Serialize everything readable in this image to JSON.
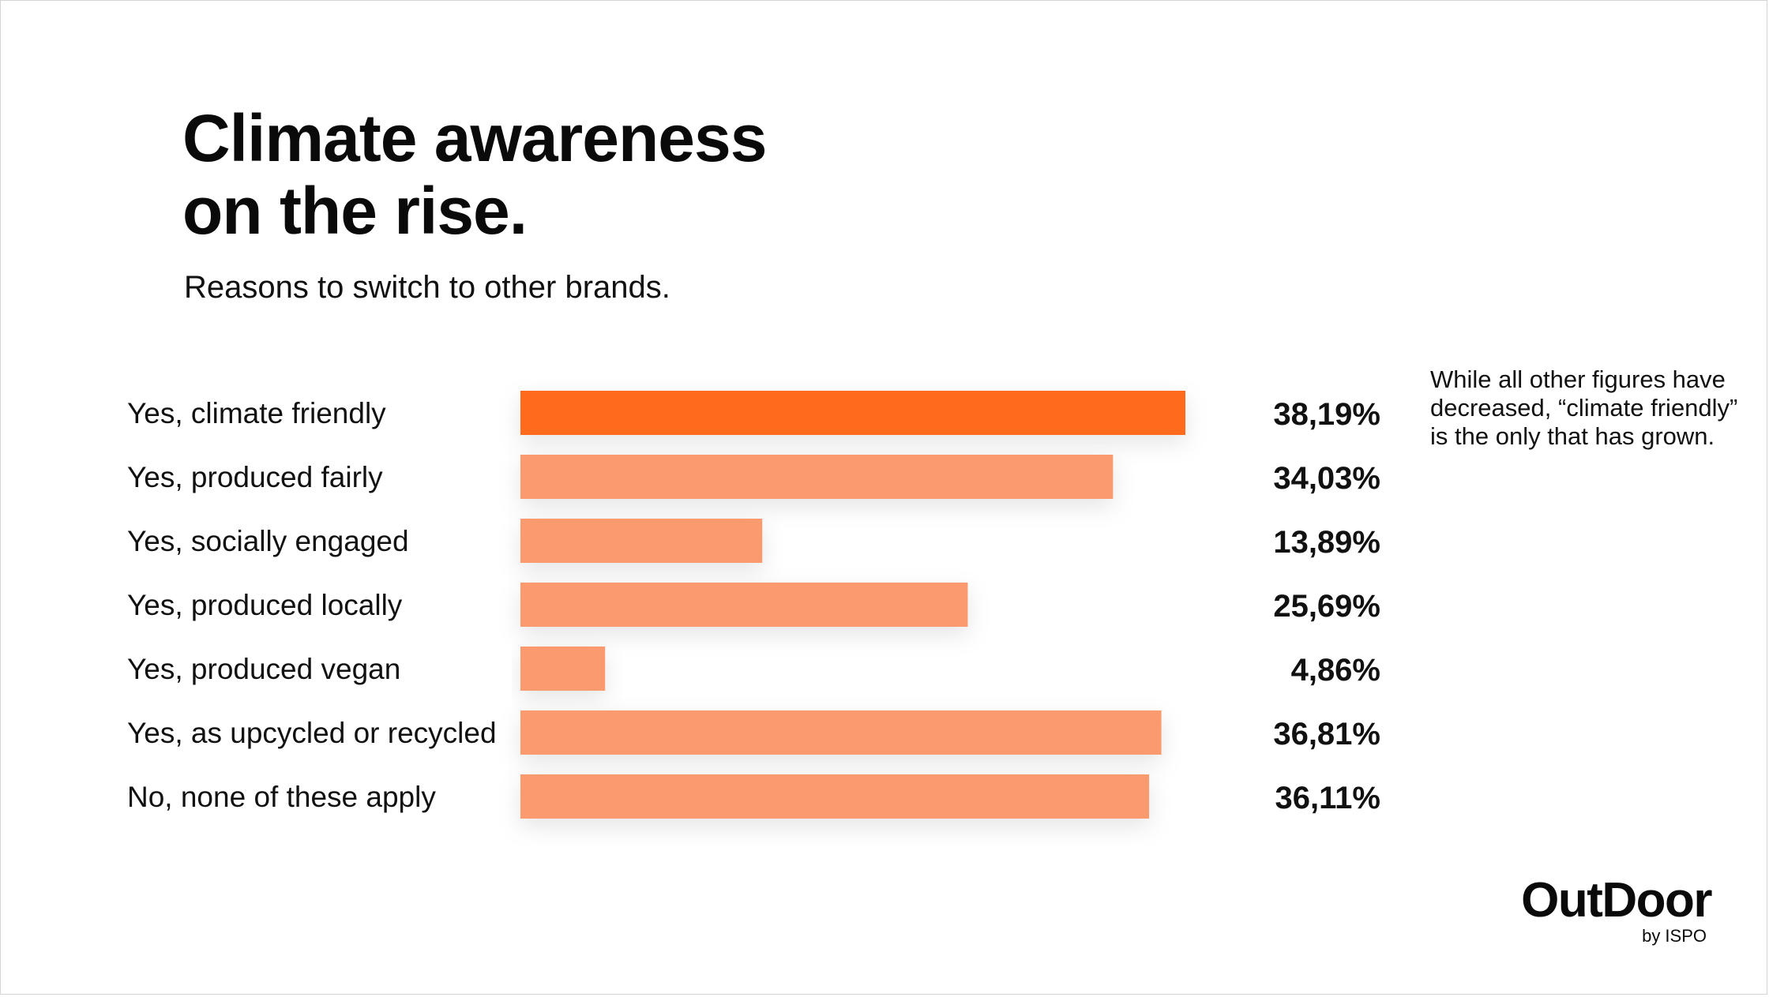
{
  "title_lines": [
    "Climate awareness",
    "on the rise."
  ],
  "subtitle": "Reasons to switch to other brands.",
  "note": "While all other figures have decreased, “climate friendly” is the only that has grown.",
  "logo": {
    "main": "OutDoor",
    "sub": "by ISPO"
  },
  "colors": {
    "highlight": "#ff6a1a",
    "bar": "#fb9a6e",
    "text": "#111111"
  },
  "chart_data": {
    "type": "bar",
    "orientation": "horizontal",
    "categories": [
      "Yes, climate friendly",
      "Yes, produced fairly",
      "Yes, socially engaged",
      "Yes, produced locally",
      "Yes, produced vegan",
      "Yes, as upcycled or recycled",
      "No, none of these apply"
    ],
    "values": [
      38.19,
      34.03,
      13.89,
      25.69,
      4.86,
      36.81,
      36.11
    ],
    "value_labels": [
      "38,19%",
      "34,03%",
      "13,89%",
      "25,69%",
      "4,86%",
      "36,81%",
      "36,11%"
    ],
    "highlight_index": 0,
    "unit": "%",
    "xlim": [
      0,
      38.19
    ]
  }
}
